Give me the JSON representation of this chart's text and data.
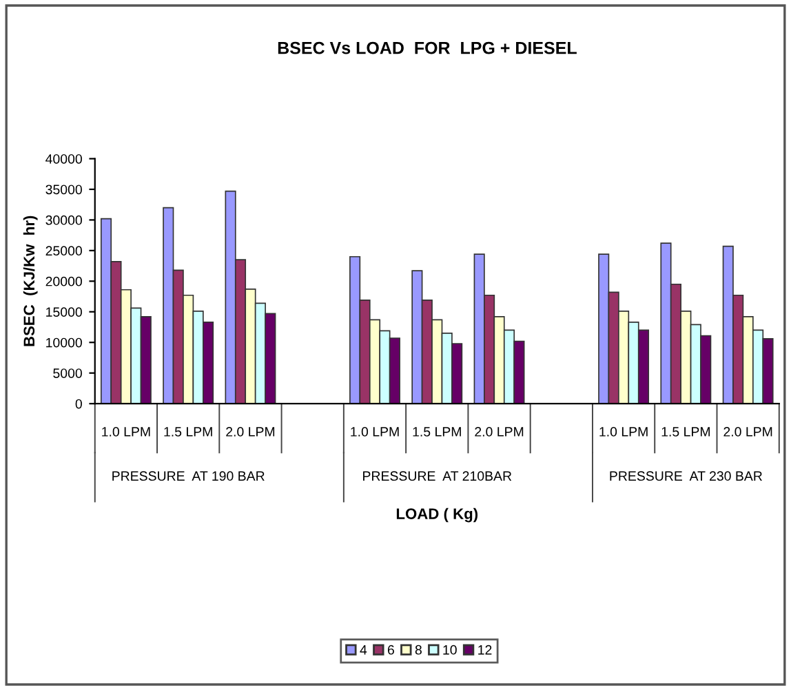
{
  "chart_data": {
    "type": "bar",
    "title": "BSEC Vs LOAD  FOR  LPG + DIESEL",
    "xlabel": "LOAD ( Kg)",
    "ylabel": "BSEC  (KJ/Kw  hr)",
    "categories": [
      "1.0 LPM",
      "1.5 LPM",
      "2.0 LPM",
      null,
      "1.0 LPM",
      "1.5 LPM",
      "2.0 LPM",
      null,
      "1.0 LPM",
      "1.5 LPM",
      "2.0 LPM"
    ],
    "annotations": [
      "PRESSURE  AT 190 BAR",
      "PRESSURE  AT 210BAR",
      "PRESSURE  AT 230 BAR"
    ],
    "series": [
      {
        "name": "4",
        "color": "#9999ff",
        "values": [
          30200,
          32000,
          34700,
          null,
          24000,
          21700,
          24400,
          null,
          24400,
          26200,
          25700
        ]
      },
      {
        "name": "6",
        "color": "#993366",
        "values": [
          23200,
          21800,
          23500,
          null,
          16900,
          16900,
          17700,
          null,
          18200,
          19500,
          17700
        ]
      },
      {
        "name": "8",
        "color": "#ffffcc",
        "values": [
          18600,
          17700,
          18700,
          null,
          13700,
          13700,
          14200,
          null,
          15100,
          15100,
          14200
        ]
      },
      {
        "name": "10",
        "color": "#ccffff",
        "values": [
          15600,
          15100,
          16400,
          null,
          11900,
          11500,
          12000,
          null,
          13300,
          12900,
          12000
        ]
      },
      {
        "name": "12",
        "color": "#660066",
        "values": [
          14200,
          13300,
          14700,
          null,
          10700,
          9800,
          10200,
          null,
          12000,
          11100,
          10600
        ]
      }
    ],
    "ylim": [
      0,
      40000
    ],
    "yticks": [
      0,
      5000,
      10000,
      15000,
      20000,
      25000,
      30000,
      35000,
      40000
    ],
    "grid": false,
    "legend": "bottom"
  }
}
